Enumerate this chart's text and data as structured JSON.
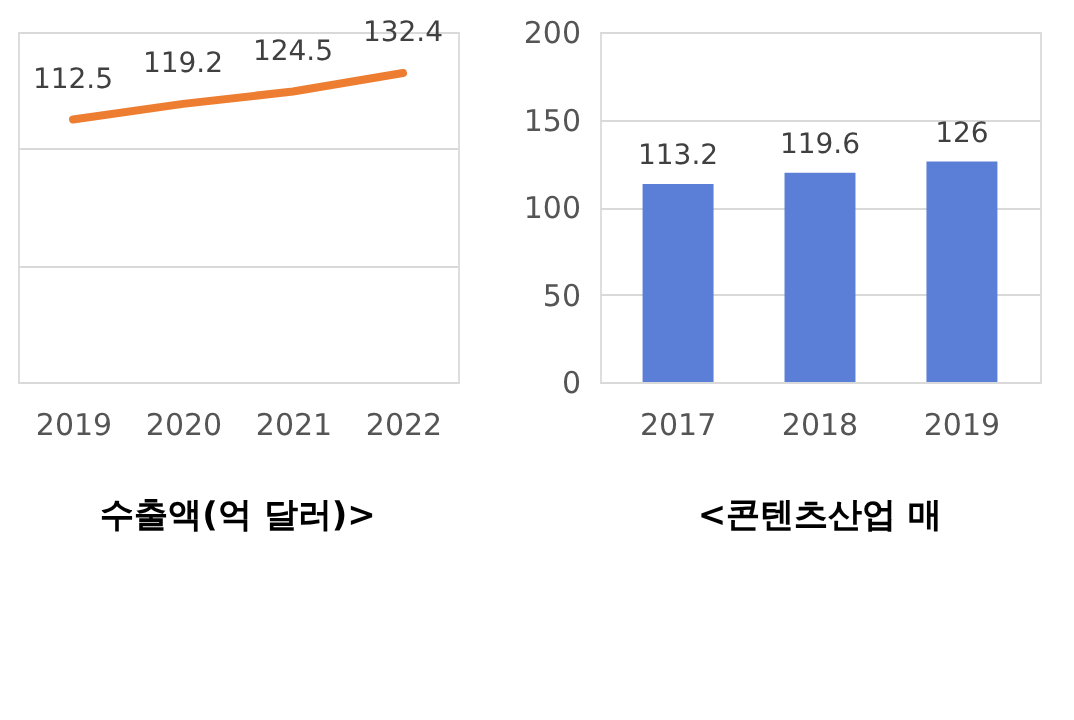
{
  "chart_data": [
    {
      "type": "line",
      "title": "수출액(억 달러)>",
      "categories": [
        "2019",
        "2020",
        "2021",
        "2022"
      ],
      "series": [
        {
          "color": "#ed7d31",
          "values": [
            112.5,
            119.2,
            124.5,
            132.4
          ]
        }
      ],
      "ylim": [
        0,
        150
      ],
      "yticks": [
        {
          "value": 0,
          "label": null
        },
        {
          "value": 50,
          "label": null
        },
        {
          "value": 100,
          "label": null
        },
        {
          "value": 150,
          "label": null
        }
      ],
      "tick_labels": "x",
      "grid": "y",
      "data_labels": true,
      "marker": "none",
      "line_style": "solid"
    },
    {
      "type": "bar",
      "title": "<콘텐츠산업 매",
      "categories": [
        "2017",
        "2018",
        "2019"
      ],
      "series": [
        {
          "color": "#5b7fd6",
          "values": [
            113.2,
            119.6,
            126
          ],
          "value_labels": [
            "113.2",
            "119.6",
            "126"
          ]
        }
      ],
      "ylim": [
        0,
        200
      ],
      "yticks": [
        0,
        50,
        100,
        150,
        200
      ],
      "grid": "y"
    }
  ]
}
